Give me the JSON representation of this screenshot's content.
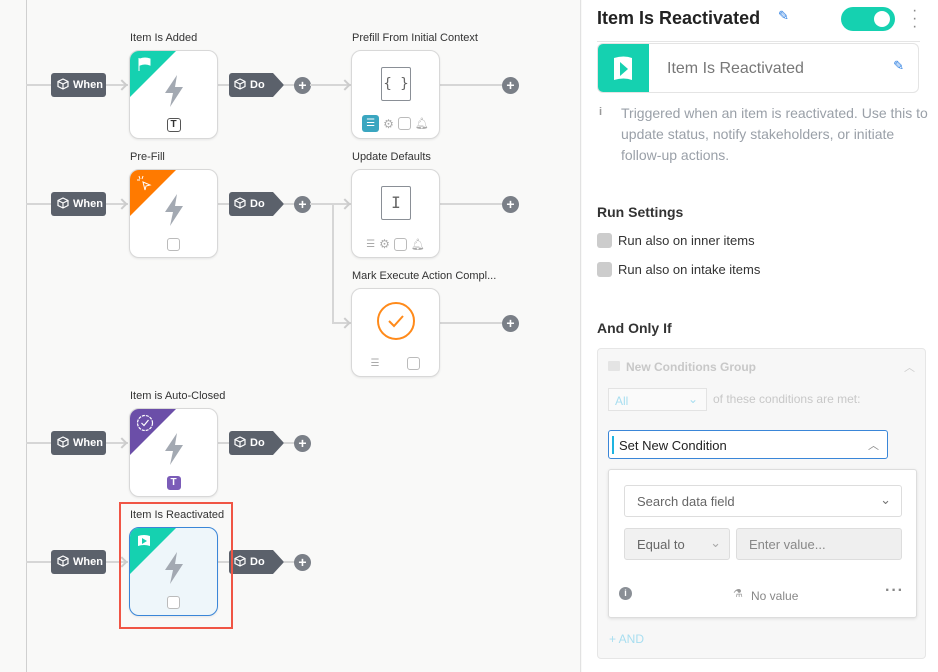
{
  "canvas": {
    "when_label": "When",
    "do_label": "Do",
    "plus": "+",
    "triggers": [
      {
        "title": "Item Is Added",
        "color": "#15d1b0",
        "icon": "flag-icon",
        "badge": "T"
      },
      {
        "title": "Pre-Fill",
        "color": "#ff7a00",
        "icon": "cursor-click-icon",
        "badge": ""
      },
      {
        "title": "Item is Auto-Closed",
        "color": "#6b4ea8",
        "icon": "check-circle-icon",
        "badge": "T"
      },
      {
        "title": "Item Is Reactivated",
        "color": "#15d1b0",
        "icon": "flag-play-icon",
        "badge": "",
        "selected": true
      }
    ],
    "actions": [
      {
        "title": "Prefill From Initial Context",
        "icon": "braces-icon",
        "glyph": "{ }"
      },
      {
        "title": "Update Defaults",
        "icon": "text-cursor-icon",
        "glyph": "I"
      },
      {
        "title": "Mark Execute Action Compl...",
        "icon": "check-circle-icon"
      }
    ]
  },
  "panel": {
    "title": "Item Is Reactivated",
    "enabled": true,
    "trigger_name": "Item Is Reactivated",
    "accent": "#15d1b0",
    "description": "Triggered when an item is reactivated. Use this to update status, notify stakeholders, or initiate follow-up actions.",
    "run_settings": {
      "heading": "Run Settings",
      "options": [
        {
          "label": "Run also on inner items",
          "checked": false
        },
        {
          "label": "Run also on intake items",
          "checked": false
        }
      ]
    },
    "conditions": {
      "heading": "And Only If",
      "group_name": "New Conditions Group",
      "match": "All",
      "match_suffix": "of these conditions are met:",
      "set_condition": "Set New Condition",
      "field_placeholder": "Search data field",
      "operator": "Equal to",
      "value_placeholder": "Enter value...",
      "no_value": "No value",
      "add_and": "+ AND"
    }
  }
}
